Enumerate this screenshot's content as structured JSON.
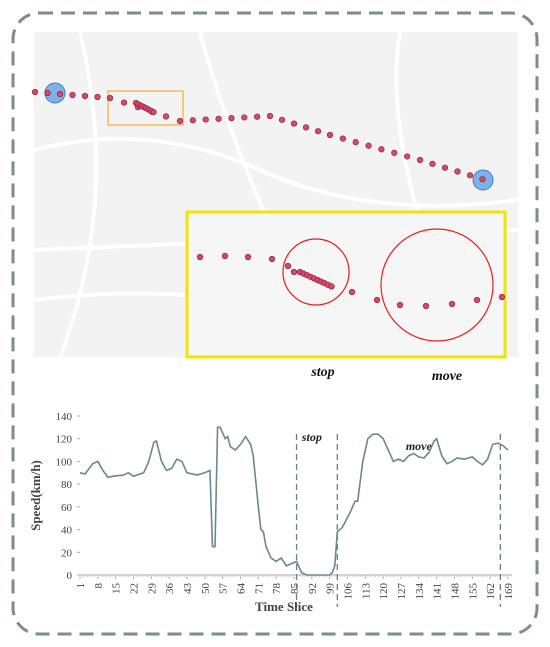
{
  "map": {
    "labels": [
      "stop",
      "move"
    ]
  },
  "chart_data": {
    "type": "line",
    "x_label": "Time Slice",
    "y_label": "Speed(km/h)",
    "xlim": [
      1,
      169
    ],
    "ylim": [
      0,
      140
    ],
    "xticks": [
      1,
      8,
      15,
      22,
      29,
      36,
      43,
      50,
      57,
      64,
      71,
      78,
      85,
      92,
      99,
      106,
      113,
      120,
      127,
      134,
      141,
      148,
      155,
      162,
      169
    ],
    "yticks": [
      0,
      20,
      40,
      60,
      80,
      100,
      120,
      140
    ],
    "reference_lines": [
      86,
      102,
      166
    ],
    "annotations": [
      {
        "text": "stop",
        "x": 92,
        "y": 118
      },
      {
        "text": "move",
        "x": 134,
        "y": 110
      }
    ],
    "series": [
      {
        "name": "Speed",
        "color": "#6b8794",
        "x": [
          1,
          3,
          6,
          8,
          10,
          12,
          14,
          18,
          20,
          22,
          26,
          28,
          30,
          31,
          33,
          35,
          37,
          39,
          41,
          43,
          47,
          50,
          52,
          53,
          54,
          55,
          56,
          58,
          59,
          60,
          62,
          64,
          66,
          68,
          69,
          71,
          72,
          73,
          74,
          76,
          78,
          80,
          82,
          84,
          86,
          88,
          90,
          92,
          96,
          99,
          100,
          101,
          102,
          104,
          107,
          109,
          110,
          112,
          114,
          116,
          118,
          120,
          122,
          124,
          126,
          128,
          130,
          132,
          134,
          136,
          138,
          140,
          141,
          143,
          145,
          147,
          149,
          152,
          155,
          157,
          159,
          161,
          163,
          165,
          167,
          169
        ],
        "values": [
          90,
          89,
          98,
          100,
          92,
          86,
          87,
          88,
          90,
          87,
          90,
          100,
          117,
          118,
          100,
          92,
          94,
          102,
          100,
          90,
          88,
          90,
          92,
          25,
          25,
          130,
          130,
          120,
          122,
          113,
          110,
          115,
          122,
          115,
          105,
          60,
          40,
          38,
          25,
          15,
          12,
          15,
          8,
          10,
          12,
          2,
          0,
          0,
          0,
          0,
          2,
          8,
          38,
          42,
          55,
          65,
          65,
          100,
          120,
          124,
          124,
          120,
          110,
          100,
          102,
          100,
          105,
          107,
          104,
          103,
          108,
          118,
          120,
          105,
          98,
          100,
          103,
          102,
          104,
          100,
          97,
          102,
          115,
          116,
          114,
          110
        ]
      }
    ]
  }
}
